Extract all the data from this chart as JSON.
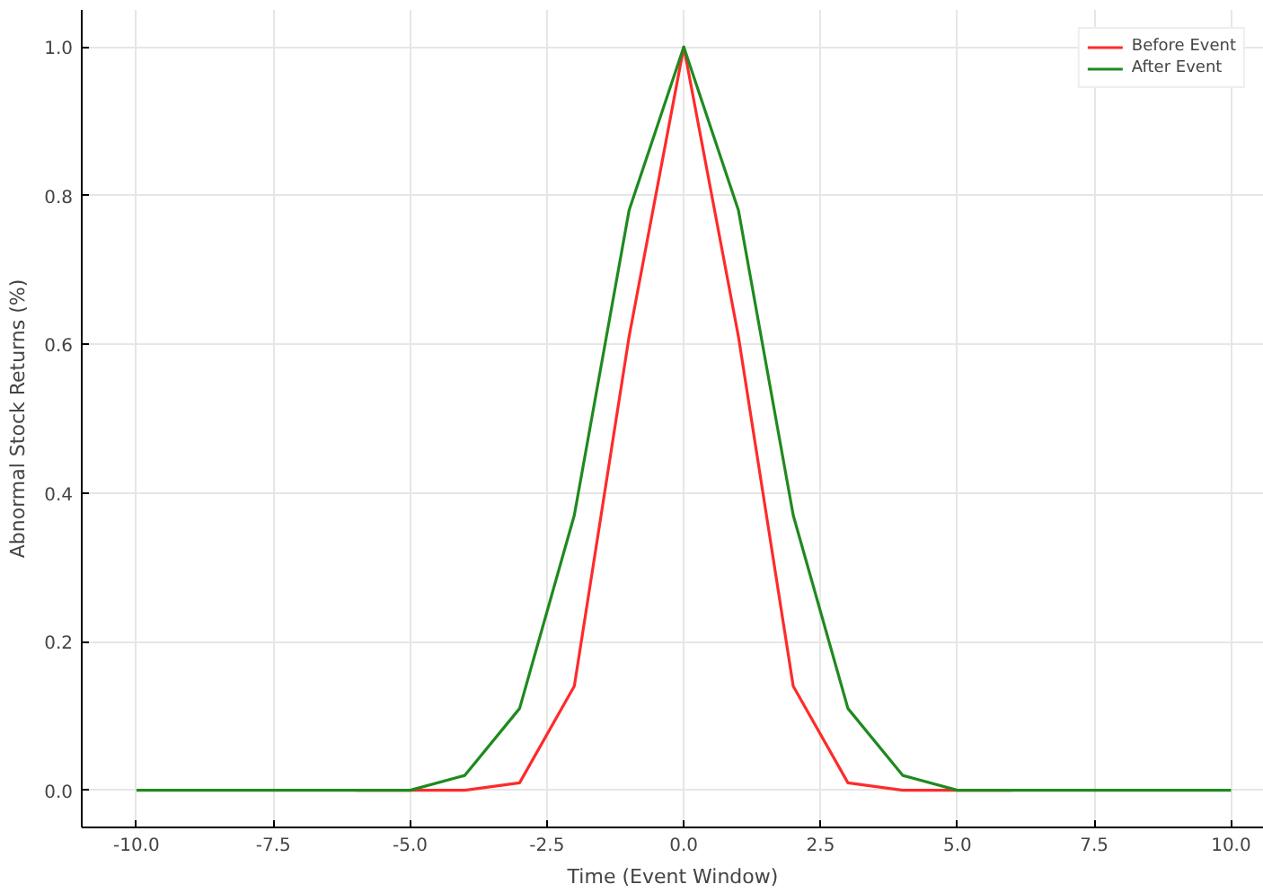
{
  "chart_data": {
    "type": "line",
    "xlabel": "Time (Event Window)",
    "ylabel": "Abnormal Stock Returns (%)",
    "x": [
      -10,
      -9,
      -8,
      -7,
      -6,
      -5,
      -4,
      -3,
      -2,
      -1,
      0,
      1,
      2,
      3,
      4,
      5,
      6,
      7,
      8,
      9,
      10
    ],
    "series": [
      {
        "name": "Before Event",
        "color": "#ff2a2a",
        "values": [
          null,
          null,
          null,
          null,
          0,
          0,
          0,
          0.01,
          0.14,
          0.61,
          1,
          0.61,
          0.14,
          0.01,
          0,
          0,
          0,
          null,
          null,
          null,
          null
        ]
      },
      {
        "name": "After Event",
        "color": "#1f8a1f",
        "values": [
          0,
          0,
          0,
          0,
          0,
          0,
          0.02,
          0.11,
          0.37,
          0.78,
          1,
          0.78,
          0.37,
          0.11,
          0.02,
          0,
          0,
          0,
          0,
          0,
          0
        ]
      }
    ],
    "xlim": [
      -11,
      10.6
    ],
    "ylim": [
      -0.05,
      1.05
    ],
    "xticks": [
      {
        "value": -10,
        "label": "-10.0"
      },
      {
        "value": -7.5,
        "label": "-7.5"
      },
      {
        "value": -5,
        "label": "-5.0"
      },
      {
        "value": -2.5,
        "label": "-2.5"
      },
      {
        "value": 0,
        "label": "0.0"
      },
      {
        "value": 2.5,
        "label": "2.5"
      },
      {
        "value": 5,
        "label": "5.0"
      },
      {
        "value": 7.5,
        "label": "7.5"
      },
      {
        "value": 10,
        "label": "10.0"
      }
    ],
    "yticks": [
      {
        "value": 0,
        "label": "0.0"
      },
      {
        "value": 0.2,
        "label": "0.2"
      },
      {
        "value": 0.4,
        "label": "0.4"
      },
      {
        "value": 0.6,
        "label": "0.6"
      },
      {
        "value": 0.8,
        "label": "0.8"
      },
      {
        "value": 1,
        "label": "1.0"
      }
    ],
    "grid": true,
    "legend": "top right",
    "line_style": "solid",
    "marker": "none"
  }
}
